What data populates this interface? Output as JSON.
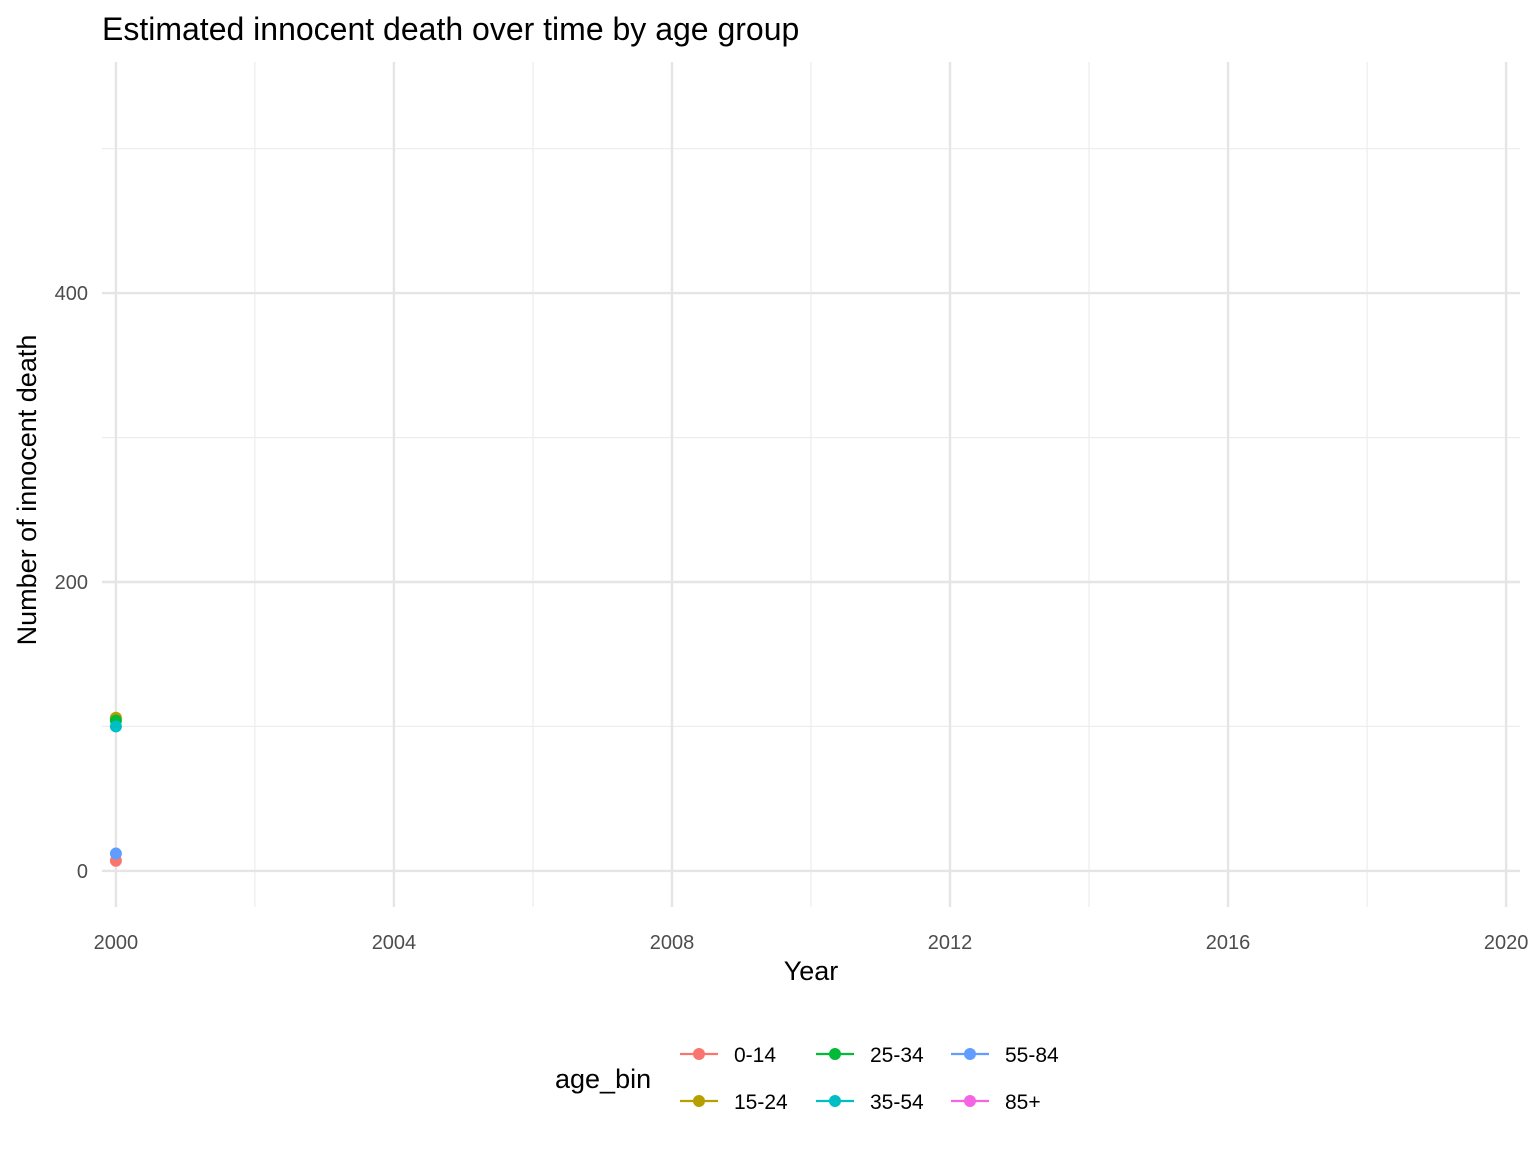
{
  "chart_data": {
    "type": "line",
    "title": "Estimated innocent death over time by age group",
    "xlabel": "Year",
    "ylabel": "Number of innocent death",
    "xlim": [
      1999.8,
      2020.2
    ],
    "ylim": [
      -25,
      560
    ],
    "x_ticks": [
      2000,
      2004,
      2008,
      2012,
      2016,
      2020
    ],
    "x_minor_ticks": [
      2002,
      2006,
      2010,
      2014,
      2018
    ],
    "y_ticks": [
      0,
      200,
      400
    ],
    "y_minor_ticks": [
      100,
      300,
      500
    ],
    "grid": true,
    "legend": {
      "title": "age_bin",
      "position": "bottom"
    },
    "series": [
      {
        "name": "0-14",
        "color": "#F8766D",
        "points": [
          {
            "x": 2000,
            "y": 7
          }
        ]
      },
      {
        "name": "15-24",
        "color": "#B79F00",
        "points": [
          {
            "x": 2000,
            "y": 106
          }
        ]
      },
      {
        "name": "25-34",
        "color": "#00BA38",
        "points": [
          {
            "x": 2000,
            "y": 104
          }
        ]
      },
      {
        "name": "35-54",
        "color": "#00BFC4",
        "points": [
          {
            "x": 2000,
            "y": 100
          }
        ]
      },
      {
        "name": "55-84",
        "color": "#619CFF",
        "points": [
          {
            "x": 2000,
            "y": 12
          }
        ]
      },
      {
        "name": "85+",
        "color": "#F564E3",
        "points": []
      }
    ]
  }
}
